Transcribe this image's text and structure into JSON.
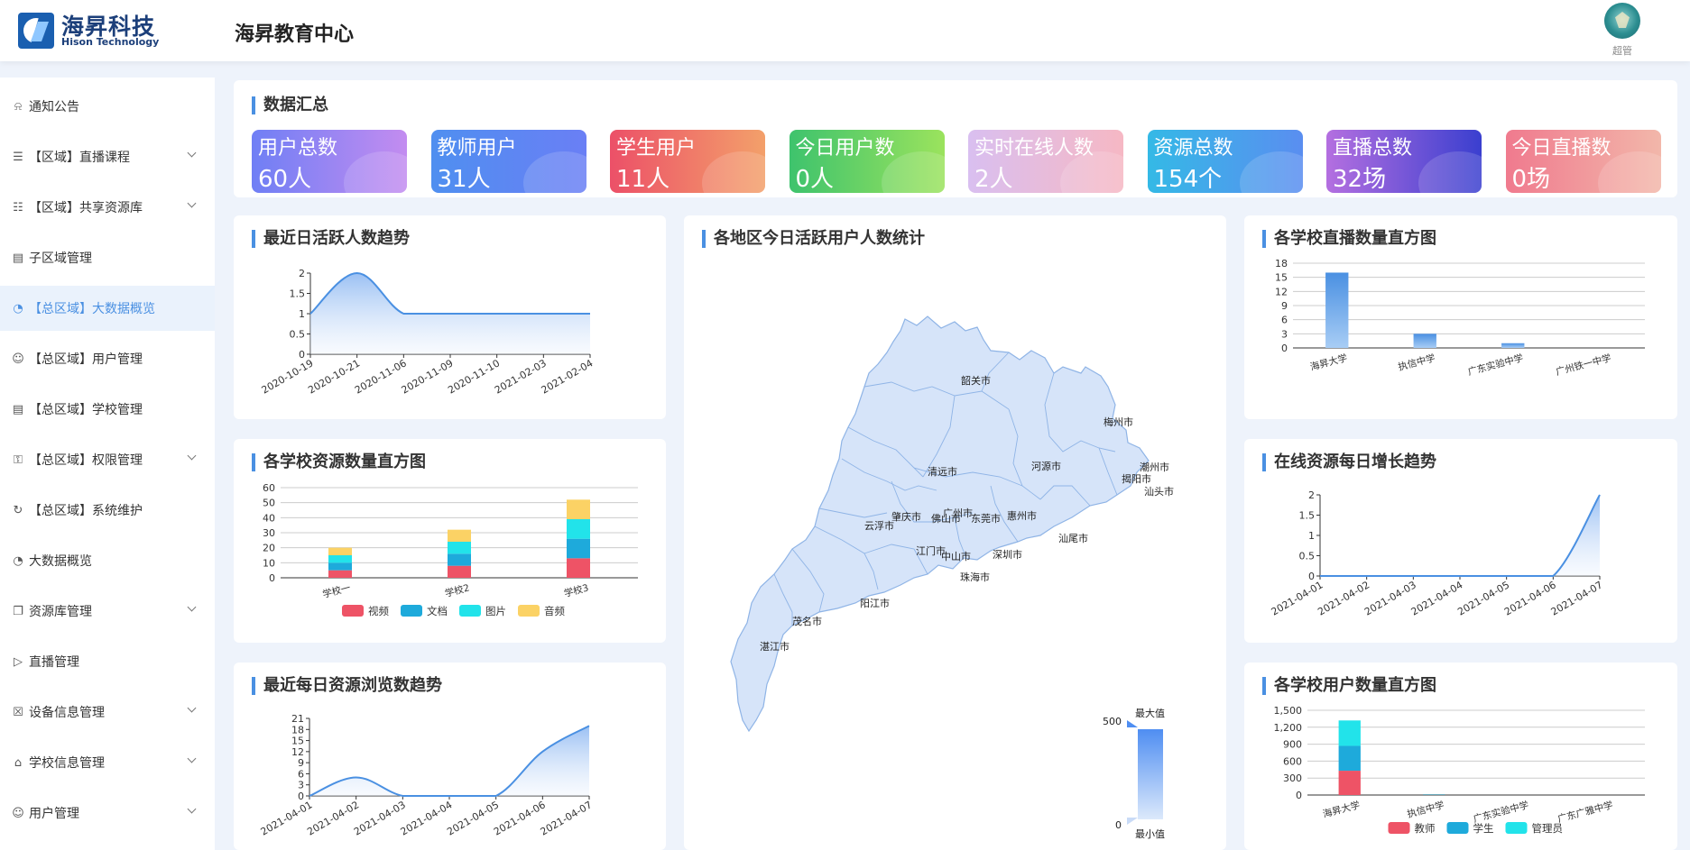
{
  "header": {
    "logo_cn": "海昇科技",
    "logo_en": "Hison Technology",
    "app_title": "海昇教育中心",
    "user_name": "超管"
  },
  "sidebar": {
    "items": [
      {
        "label": "通知公告",
        "icon": "bell-icon",
        "has_arrow": false,
        "active": false
      },
      {
        "label": "【区域】直播课程",
        "icon": "list-icon",
        "has_arrow": true,
        "active": false
      },
      {
        "label": "【区域】共享资源库",
        "icon": "document-icon",
        "has_arrow": true,
        "active": false
      },
      {
        "label": "子区域管理",
        "icon": "building-icon",
        "has_arrow": false,
        "active": false
      },
      {
        "label": "【总区域】大数据概览",
        "icon": "pie-chart-icon",
        "has_arrow": false,
        "active": true
      },
      {
        "label": "【总区域】用户管理",
        "icon": "user-icon",
        "has_arrow": false,
        "active": false
      },
      {
        "label": "【总区域】学校管理",
        "icon": "building-icon",
        "has_arrow": false,
        "active": false
      },
      {
        "label": "【总区域】权限管理",
        "icon": "key-icon",
        "has_arrow": true,
        "active": false
      },
      {
        "label": "【总区域】系统维护",
        "icon": "refresh-icon",
        "has_arrow": false,
        "active": false
      },
      {
        "label": "大数据概览",
        "icon": "pie-chart-icon",
        "has_arrow": false,
        "active": false
      },
      {
        "label": "资源库管理",
        "icon": "folder-icon",
        "has_arrow": true,
        "active": false
      },
      {
        "label": "直播管理",
        "icon": "video-icon",
        "has_arrow": false,
        "active": false
      },
      {
        "label": "设备信息管理",
        "icon": "device-icon",
        "has_arrow": true,
        "active": false
      },
      {
        "label": "学校信息管理",
        "icon": "school-icon",
        "has_arrow": true,
        "active": false
      },
      {
        "label": "用户管理",
        "icon": "user-icon",
        "has_arrow": true,
        "active": false
      }
    ]
  },
  "summary": {
    "title": "数据汇总",
    "cards": [
      {
        "label": "用户总数",
        "value": "60人",
        "from": "#6f7ff5",
        "to": "#c38cf0"
      },
      {
        "label": "教师用户",
        "value": "31人",
        "from": "#4f8ff0",
        "to": "#6a7ff5"
      },
      {
        "label": "学生用户",
        "value": "11人",
        "from": "#ec5068",
        "to": "#f3a06a"
      },
      {
        "label": "今日用户数",
        "value": "0人",
        "from": "#3ec36d",
        "to": "#9be35d"
      },
      {
        "label": "实时在线人数",
        "value": "2人",
        "from": "#d9bff0",
        "to": "#f6b8c4"
      },
      {
        "label": "资源总数",
        "value": "154个",
        "from": "#34b9e6",
        "to": "#5a8ef0"
      },
      {
        "label": "直播总数",
        "value": "32场",
        "from": "#b46fe0",
        "to": "#3a3fcf"
      },
      {
        "label": "今日直播数",
        "value": "0场",
        "from": "#f07a8e",
        "to": "#f2b7aa"
      }
    ]
  },
  "panels": {
    "daily_active": "最近日活跃人数趋势",
    "map": "各地区今日活跃用户人数统计",
    "live_hist": "各学校直播数量直方图",
    "resource_hist": "各学校资源数量直方图",
    "online_growth": "在线资源每日增长趋势",
    "browse_trend": "最近每日资源浏览数趋势",
    "user_hist": "各学校用户数量直方图"
  },
  "map": {
    "cities": [
      "韶关市",
      "梅州市",
      "潮州市",
      "揭阳市",
      "汕头市",
      "河源市",
      "清远市",
      "广州市",
      "佛山市",
      "肇庆市",
      "云浮市",
      "东莞市",
      "惠州市",
      "汕尾市",
      "江门市",
      "中山市",
      "深圳市",
      "珠海市",
      "阳江市",
      "茂名市",
      "湛江市"
    ],
    "visual_map": {
      "max_label": "最大值",
      "min_label": "最小值",
      "max": 500,
      "min": 0,
      "color_top": "#4f8ef2",
      "color_bottom": "#dce9fb"
    }
  },
  "chart_data": [
    {
      "id": "daily_active",
      "type": "area",
      "title": "最近日活跃人数趋势",
      "x": [
        "2020-10-19",
        "2020-10-21",
        "2020-11-06",
        "2020-11-09",
        "2020-11-10",
        "2021-02-03",
        "2021-02-04"
      ],
      "series": [
        {
          "values": [
            1,
            2,
            1,
            1,
            1,
            1,
            1
          ]
        }
      ],
      "ylim": [
        0,
        2
      ],
      "yticks": [
        0,
        0.5,
        1,
        1.5,
        2
      ],
      "color": "#4a90e2",
      "smooth": true
    },
    {
      "id": "live_hist",
      "type": "bar",
      "title": "各学校直播数量直方图",
      "categories": [
        "海昇大学",
        "执信中学",
        "广东实验中学",
        "广州铁一中学"
      ],
      "values": [
        16,
        3,
        1,
        0
      ],
      "ylim": [
        0,
        18
      ],
      "yticks": [
        0,
        3,
        6,
        9,
        12,
        15,
        18
      ],
      "color": "#4a90e2"
    },
    {
      "id": "resource_hist",
      "type": "bar",
      "stacked": true,
      "title": "各学校资源数量直方图",
      "categories": [
        "学校一",
        "学校2",
        "学校3"
      ],
      "series": [
        {
          "name": "视频",
          "values": [
            5,
            8,
            13
          ],
          "color": "#ee5366"
        },
        {
          "name": "文档",
          "values": [
            5,
            8,
            13
          ],
          "color": "#1eaadb"
        },
        {
          "name": "图片",
          "values": [
            5,
            8,
            13
          ],
          "color": "#22e3ea"
        },
        {
          "name": "音频",
          "values": [
            5,
            8,
            13
          ],
          "color": "#fbd265"
        }
      ],
      "ylim": [
        0,
        60
      ],
      "yticks": [
        0,
        10,
        20,
        30,
        40,
        50,
        60
      ]
    },
    {
      "id": "online_growth",
      "type": "area",
      "title": "在线资源每日增长趋势",
      "x": [
        "2021-04-01",
        "2021-04-02",
        "2021-04-03",
        "2021-04-04",
        "2021-04-05",
        "2021-04-06",
        "2021-04-07"
      ],
      "series": [
        {
          "values": [
            0,
            0,
            0,
            0,
            0,
            0,
            2
          ]
        }
      ],
      "ylim": [
        0,
        2
      ],
      "yticks": [
        0,
        0.5,
        1,
        1.5,
        2
      ],
      "color": "#4a90e2",
      "smooth": true
    },
    {
      "id": "browse_trend",
      "type": "area",
      "title": "最近每日资源浏览数趋势",
      "x": [
        "2021-04-01",
        "2021-04-02",
        "2021-04-03",
        "2021-04-04",
        "2021-04-05",
        "2021-04-06",
        "2021-04-07"
      ],
      "series": [
        {
          "values": [
            0,
            5,
            0,
            0,
            0,
            12,
            19
          ]
        }
      ],
      "ylim": [
        0,
        21
      ],
      "yticks": [
        0,
        3,
        6,
        9,
        12,
        15,
        18,
        21
      ],
      "color": "#4a90e2",
      "smooth": true
    },
    {
      "id": "user_hist",
      "type": "bar",
      "stacked": true,
      "title": "各学校用户数量直方图",
      "categories": [
        "海昇大学",
        "执信中学",
        "广东实验中学",
        "广东广雅中学"
      ],
      "series": [
        {
          "name": "教师",
          "values": [
            430,
            5,
            0,
            0
          ],
          "color": "#ee5366"
        },
        {
          "name": "学生",
          "values": [
            440,
            5,
            0,
            0
          ],
          "color": "#1eaadb"
        },
        {
          "name": "管理员",
          "values": [
            450,
            5,
            0,
            0
          ],
          "color": "#22e3ea"
        }
      ],
      "ylim": [
        0,
        1500
      ],
      "yticks": [
        0,
        300,
        600,
        900,
        1200,
        1500
      ],
      "ytick_labels": [
        "0",
        "300",
        "600",
        "900",
        "1,200",
        "1,500"
      ]
    }
  ]
}
